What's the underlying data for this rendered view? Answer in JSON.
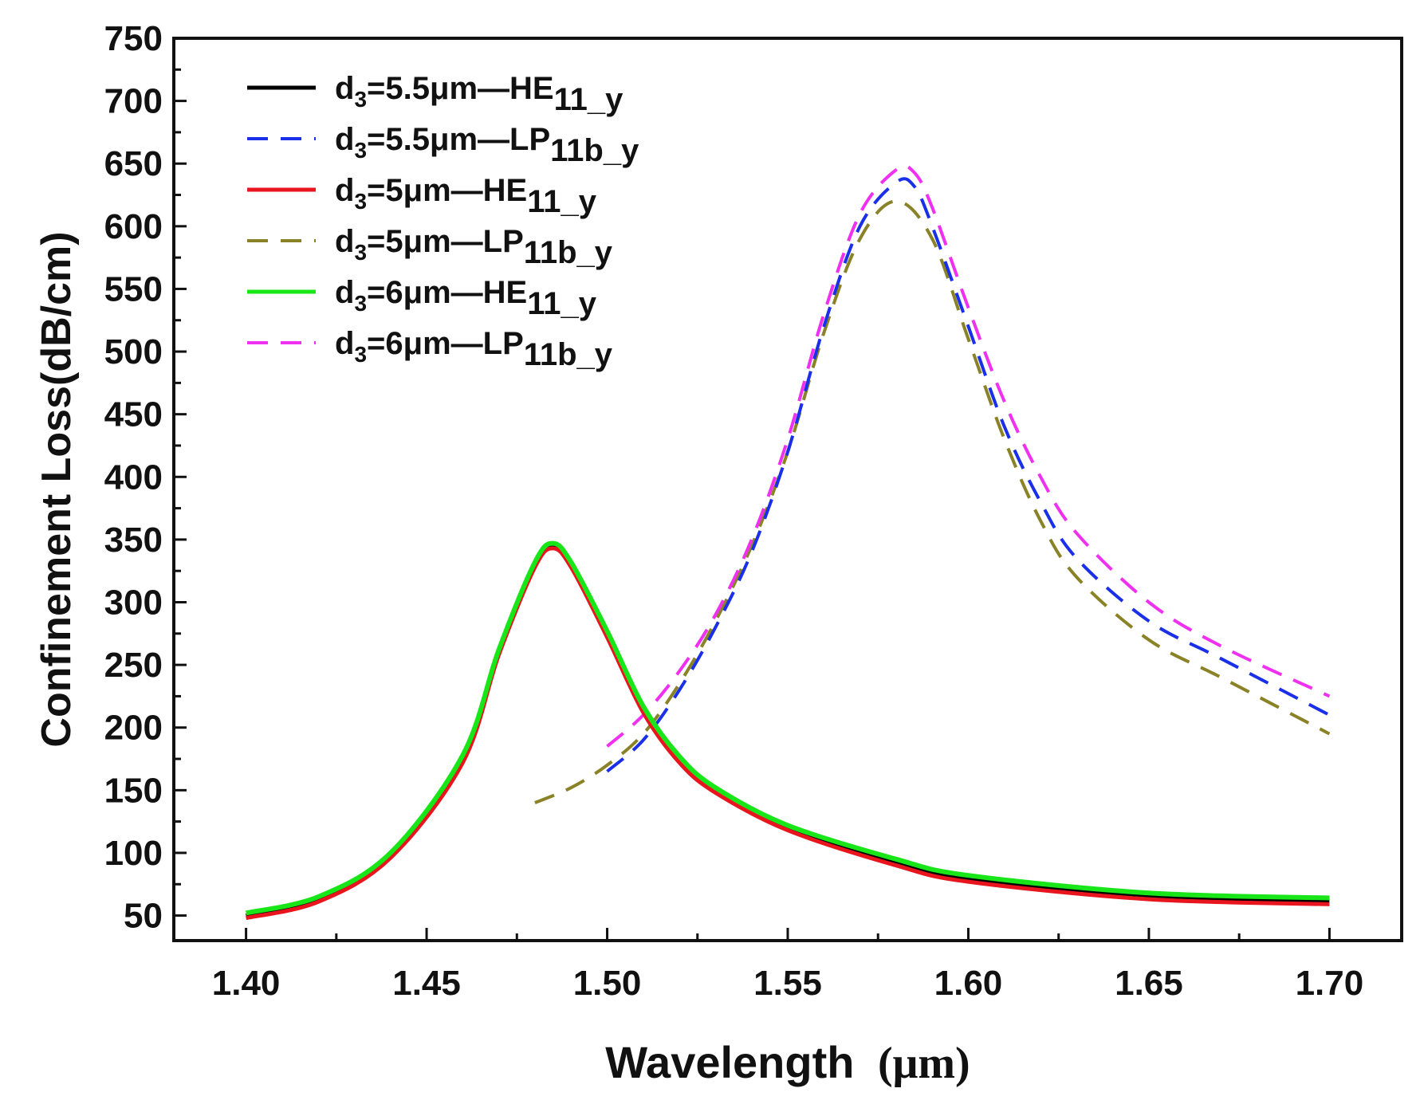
{
  "chart_data": {
    "type": "line",
    "title": "",
    "xlabel": "Wavelength",
    "xlabel_unit": "(μm)",
    "ylabel": "Confinement Loss(dB/cm)",
    "xlim": [
      1.38,
      1.72
    ],
    "ylim": [
      30,
      750
    ],
    "xticks": [
      1.4,
      1.45,
      1.5,
      1.55,
      1.6,
      1.65,
      1.7
    ],
    "xtick_labels": [
      "1.40",
      "1.45",
      "1.50",
      "1.55",
      "1.60",
      "1.65",
      "1.70"
    ],
    "yticks": [
      50,
      100,
      150,
      200,
      250,
      300,
      350,
      400,
      450,
      500,
      550,
      600,
      650,
      700,
      750
    ],
    "ytick_labels": [
      "50",
      "100",
      "150",
      "200",
      "250",
      "300",
      "350",
      "400",
      "450",
      "500",
      "550",
      "600",
      "650",
      "700",
      "750"
    ],
    "legend_position": "top-left",
    "series": [
      {
        "label_prefix": "d",
        "label_sub": "3",
        "label_mid": "=5.5μm—HE",
        "label_mode_sub": "11_y",
        "color": "#000000",
        "dash": "solid",
        "x": [
          1.4,
          1.42,
          1.44,
          1.46,
          1.47,
          1.48,
          1.485,
          1.49,
          1.5,
          1.51,
          1.52,
          1.53,
          1.55,
          1.58,
          1.6,
          1.65,
          1.7
        ],
        "y": [
          50,
          63,
          98,
          175,
          260,
          330,
          345,
          330,
          275,
          215,
          175,
          150,
          120,
          93,
          80,
          66,
          62
        ]
      },
      {
        "label_prefix": "d",
        "label_sub": "3",
        "label_mid": "=5.5μm—LP",
        "label_mode_sub": "11b_y",
        "color": "#1a2fe8",
        "dash": "dashed",
        "x": [
          1.5,
          1.51,
          1.52,
          1.53,
          1.54,
          1.55,
          1.56,
          1.57,
          1.58,
          1.585,
          1.59,
          1.6,
          1.61,
          1.62,
          1.63,
          1.65,
          1.67,
          1.7
        ],
        "y": [
          165,
          190,
          230,
          280,
          340,
          420,
          520,
          600,
          635,
          632,
          600,
          520,
          440,
          380,
          335,
          285,
          255,
          210
        ]
      },
      {
        "label_prefix": "d",
        "label_sub": "3",
        "label_mid": "=5μm—HE",
        "label_mode_sub": "11_y",
        "color": "#e8141e",
        "dash": "solid",
        "x": [
          1.4,
          1.42,
          1.44,
          1.46,
          1.47,
          1.48,
          1.485,
          1.49,
          1.5,
          1.51,
          1.52,
          1.53,
          1.55,
          1.58,
          1.6,
          1.65,
          1.7
        ],
        "y": [
          48,
          61,
          96,
          172,
          258,
          328,
          343,
          328,
          272,
          212,
          172,
          148,
          118,
          90,
          77,
          63,
          59
        ]
      },
      {
        "label_prefix": "d",
        "label_sub": "3",
        "label_mid": "=5μm—LP",
        "label_mode_sub": "11b_y",
        "color": "#8a8226",
        "dash": "dashed",
        "x": [
          1.48,
          1.49,
          1.5,
          1.51,
          1.52,
          1.53,
          1.54,
          1.55,
          1.56,
          1.57,
          1.58,
          1.59,
          1.6,
          1.61,
          1.62,
          1.63,
          1.65,
          1.67,
          1.7
        ],
        "y": [
          140,
          152,
          170,
          195,
          235,
          285,
          345,
          420,
          515,
          590,
          620,
          590,
          510,
          430,
          365,
          320,
          270,
          240,
          195
        ]
      },
      {
        "label_prefix": "d",
        "label_sub": "3",
        "label_mid": "=6μm—HE",
        "label_mode_sub": "11_y",
        "color": "#19e619",
        "dash": "solid",
        "x": [
          1.4,
          1.42,
          1.44,
          1.46,
          1.47,
          1.48,
          1.485,
          1.49,
          1.5,
          1.51,
          1.52,
          1.53,
          1.55,
          1.58,
          1.6,
          1.65,
          1.7
        ],
        "y": [
          52,
          65,
          100,
          178,
          262,
          332,
          347,
          332,
          277,
          217,
          177,
          152,
          122,
          95,
          82,
          68,
          64
        ]
      },
      {
        "label_prefix": "d",
        "label_sub": "3",
        "label_mid": "=6μm—LP",
        "label_mode_sub": "11b_y",
        "color": "#f030f0",
        "dash": "dashed",
        "x": [
          1.5,
          1.51,
          1.52,
          1.53,
          1.54,
          1.55,
          1.56,
          1.57,
          1.58,
          1.585,
          1.59,
          1.6,
          1.61,
          1.62,
          1.63,
          1.65,
          1.67,
          1.7
        ],
        "y": [
          185,
          210,
          245,
          290,
          350,
          430,
          530,
          610,
          645,
          643,
          615,
          535,
          460,
          400,
          355,
          300,
          265,
          225
        ]
      }
    ]
  }
}
